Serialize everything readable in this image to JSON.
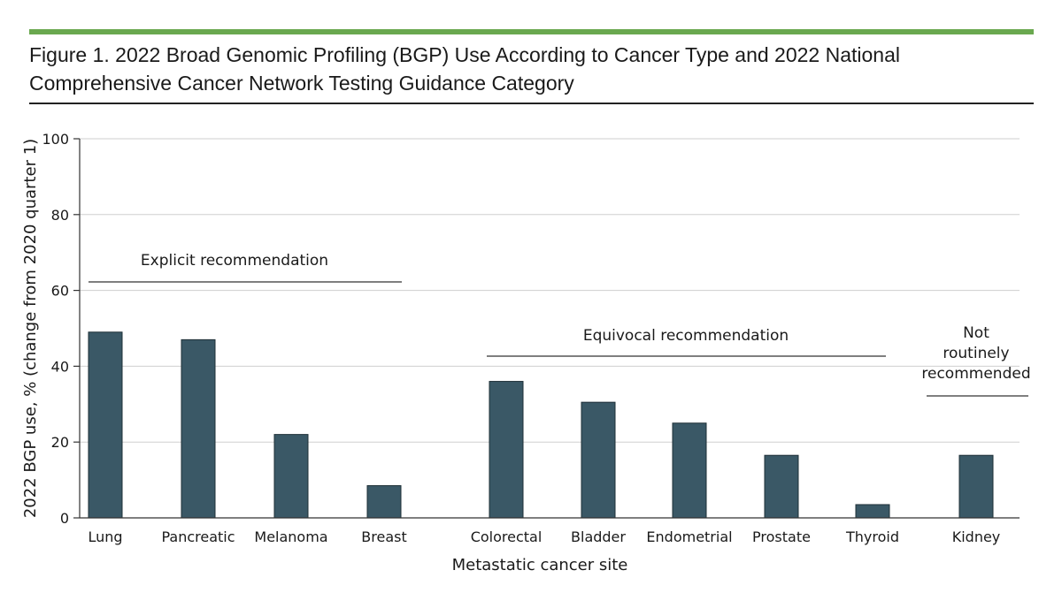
{
  "figure": {
    "title": "Figure 1. 2022 Broad Genomic Profiling (BGP) Use According to Cancer Type and 2022 National Comprehensive Cancer Network Testing Guidance Category",
    "accent_color": "#6aa84f",
    "bar_color": "#3a5866"
  },
  "chart_data": {
    "type": "bar",
    "title": "2022 Broad Genomic Profiling (BGP) Use According to Cancer Type and 2022 National Comprehensive Cancer Network Testing Guidance Category",
    "xlabel": "Metastatic cancer site",
    "ylabel": "2022 BGP use, % (change from 2020 quarter 1)",
    "ylim": [
      0,
      100
    ],
    "yticks": [
      0,
      20,
      40,
      60,
      80,
      100
    ],
    "grid": true,
    "categories": [
      "Lung",
      "Pancreatic",
      "Melanoma",
      "Breast",
      "Colorectal",
      "Bladder",
      "Endometrial",
      "Prostate",
      "Thyroid",
      "Kidney"
    ],
    "values": [
      49,
      47,
      22,
      8.5,
      36,
      30.5,
      25,
      16.5,
      3.5,
      16.5
    ],
    "groups": [
      {
        "label_lines": [
          "Explicit recommendation"
        ],
        "categories": [
          "Lung",
          "Pancreatic",
          "Melanoma",
          "Breast"
        ]
      },
      {
        "label_lines": [
          "Equivocal recommendation"
        ],
        "categories": [
          "Colorectal",
          "Bladder",
          "Endometrial",
          "Prostate",
          "Thyroid"
        ]
      },
      {
        "label_lines": [
          "Not",
          "routinely",
          "recommended"
        ],
        "categories": [
          "Kidney"
        ]
      }
    ]
  }
}
